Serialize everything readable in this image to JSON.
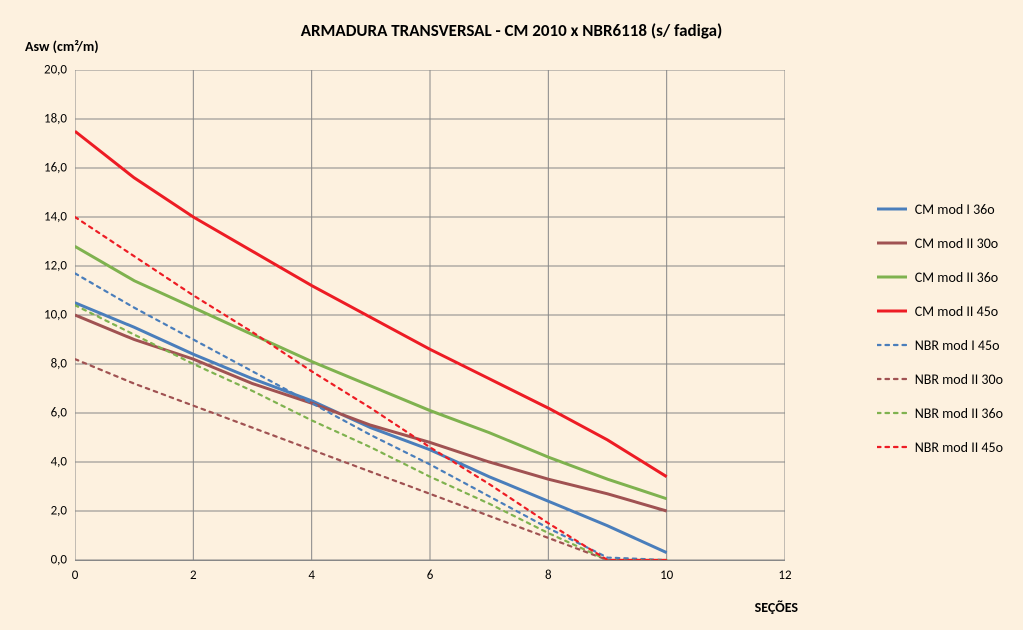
{
  "chart": {
    "type": "line",
    "title": "ARMADURA TRANSVERSAL - CM 2010 x NBR6118 (s/ fadiga)",
    "title_fontsize": 17,
    "title_fontweight": "bold",
    "ylabel": "Asw (cm²/m)",
    "xlabel": "SEÇÕES",
    "label_fontsize": 14,
    "label_fontweight": "bold",
    "background_color": "#fdf1df",
    "grid_color": "#878787",
    "grid_on": true,
    "xlim": [
      0,
      12
    ],
    "ylim": [
      0,
      20
    ],
    "xtick_step": 2,
    "ytick_step": 2,
    "xticks": [
      0,
      2,
      4,
      6,
      8,
      10,
      12
    ],
    "yticks": [
      "0,0",
      "2,0",
      "4,0",
      "6,0",
      "8,0",
      "10,0",
      "12,0",
      "14,0",
      "16,0",
      "18,0",
      "20,0"
    ],
    "tick_fontsize": 13,
    "x_values": [
      0,
      1,
      2,
      3,
      4,
      5,
      6,
      7,
      8,
      9,
      10
    ],
    "line_width_solid": 3.0,
    "line_width_dotted": 2.2,
    "series": [
      {
        "name": "CM mod I 36o",
        "color": "#4a7ebb",
        "style": "solid",
        "values": [
          10.5,
          9.5,
          8.4,
          7.4,
          6.5,
          5.4,
          4.5,
          3.4,
          2.4,
          1.4,
          0.3
        ]
      },
      {
        "name": "CM mod II 30o",
        "color": "#a05252",
        "style": "solid",
        "values": [
          10.0,
          9.0,
          8.2,
          7.2,
          6.4,
          5.5,
          4.8,
          4.0,
          3.3,
          2.7,
          2.0
        ]
      },
      {
        "name": "CM mod II 36o",
        "color": "#7fb24f",
        "style": "solid",
        "values": [
          12.8,
          11.4,
          10.3,
          9.2,
          8.1,
          7.1,
          6.1,
          5.2,
          4.2,
          3.3,
          2.5
        ]
      },
      {
        "name": "CM mod II 45o",
        "color": "#ed1c24",
        "style": "solid",
        "values": [
          17.5,
          15.6,
          14.0,
          12.6,
          11.2,
          9.9,
          8.6,
          7.4,
          6.2,
          4.9,
          3.4
        ]
      },
      {
        "name": "NBR mod I 45o",
        "color": "#4a7ebb",
        "style": "dotted",
        "values": [
          11.7,
          10.3,
          9.0,
          7.7,
          6.4,
          5.1,
          3.9,
          2.6,
          1.3,
          0.1,
          0.0
        ]
      },
      {
        "name": "NBR mod II 30o",
        "color": "#a05252",
        "style": "dotted",
        "values": [
          8.2,
          7.2,
          6.3,
          5.4,
          4.5,
          3.6,
          2.7,
          1.8,
          0.9,
          0.0,
          0.0
        ]
      },
      {
        "name": "NBR mod II 36o",
        "color": "#7fb24f",
        "style": "dotted",
        "values": [
          10.4,
          9.2,
          8.0,
          6.9,
          5.7,
          4.6,
          3.4,
          2.3,
          1.1,
          0.0,
          0.0
        ]
      },
      {
        "name": "NBR mod II 45o",
        "color": "#ed1c24",
        "style": "dotted",
        "values": [
          14.0,
          12.4,
          10.8,
          9.3,
          7.7,
          6.2,
          4.6,
          3.1,
          1.5,
          0.0,
          0.0
        ]
      }
    ],
    "legend_position": "right",
    "legend_fontsize": 14
  }
}
